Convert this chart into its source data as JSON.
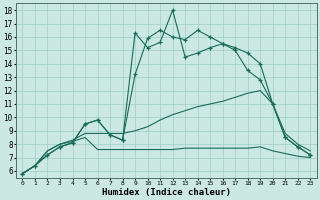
{
  "xlabel": "Humidex (Indice chaleur)",
  "xlim": [
    -0.5,
    23.5
  ],
  "ylim": [
    5.5,
    18.5
  ],
  "xticks": [
    0,
    1,
    2,
    3,
    4,
    5,
    6,
    7,
    8,
    9,
    10,
    11,
    12,
    13,
    14,
    15,
    16,
    17,
    18,
    19,
    20,
    21,
    22,
    23
  ],
  "yticks": [
    6,
    7,
    8,
    9,
    10,
    11,
    12,
    13,
    14,
    15,
    16,
    17,
    18
  ],
  "bg_color": "#cce8e2",
  "grid_color": "#9ecec5",
  "line_color": "#1a6b5a",
  "line1_x": [
    0,
    1,
    2,
    3,
    4,
    5,
    6,
    7,
    8,
    9,
    10,
    11,
    12,
    13,
    14,
    15,
    16,
    17,
    18,
    19,
    20,
    21,
    22,
    23
  ],
  "line1_y": [
    5.8,
    6.4,
    7.2,
    7.8,
    8.1,
    9.5,
    9.8,
    8.7,
    8.3,
    16.3,
    15.2,
    15.6,
    18.0,
    14.5,
    14.8,
    15.2,
    15.5,
    15.0,
    13.5,
    12.8,
    11.0,
    8.5,
    7.8,
    7.2
  ],
  "line2_x": [
    0,
    1,
    2,
    3,
    4,
    5,
    6,
    7,
    8,
    9,
    10,
    11,
    12,
    13,
    14,
    15,
    16,
    17,
    18,
    19,
    20,
    21,
    22,
    23
  ],
  "line2_y": [
    5.8,
    6.4,
    7.2,
    7.8,
    8.1,
    9.5,
    9.8,
    8.7,
    8.3,
    13.2,
    15.9,
    16.5,
    16.0,
    15.8,
    16.5,
    16.0,
    15.5,
    15.2,
    14.8,
    14.0,
    11.0,
    8.5,
    7.8,
    7.2
  ],
  "line3_x": [
    0,
    1,
    2,
    3,
    4,
    5,
    6,
    7,
    8,
    9,
    10,
    11,
    12,
    13,
    14,
    15,
    16,
    17,
    18,
    19,
    20,
    21,
    22,
    23
  ],
  "line3_y": [
    5.8,
    6.4,
    7.5,
    8.0,
    8.3,
    8.8,
    8.8,
    8.8,
    8.8,
    9.0,
    9.3,
    9.8,
    10.2,
    10.5,
    10.8,
    11.0,
    11.2,
    11.5,
    11.8,
    12.0,
    11.0,
    8.8,
    8.0,
    7.5
  ],
  "line4_x": [
    0,
    1,
    2,
    3,
    4,
    5,
    6,
    7,
    8,
    9,
    10,
    11,
    12,
    13,
    14,
    15,
    16,
    17,
    18,
    19,
    20,
    21,
    22,
    23
  ],
  "line4_y": [
    5.8,
    6.4,
    7.5,
    8.0,
    8.2,
    8.5,
    7.6,
    7.6,
    7.6,
    7.6,
    7.6,
    7.6,
    7.6,
    7.7,
    7.7,
    7.7,
    7.7,
    7.7,
    7.7,
    7.8,
    7.5,
    7.3,
    7.1,
    7.0
  ]
}
